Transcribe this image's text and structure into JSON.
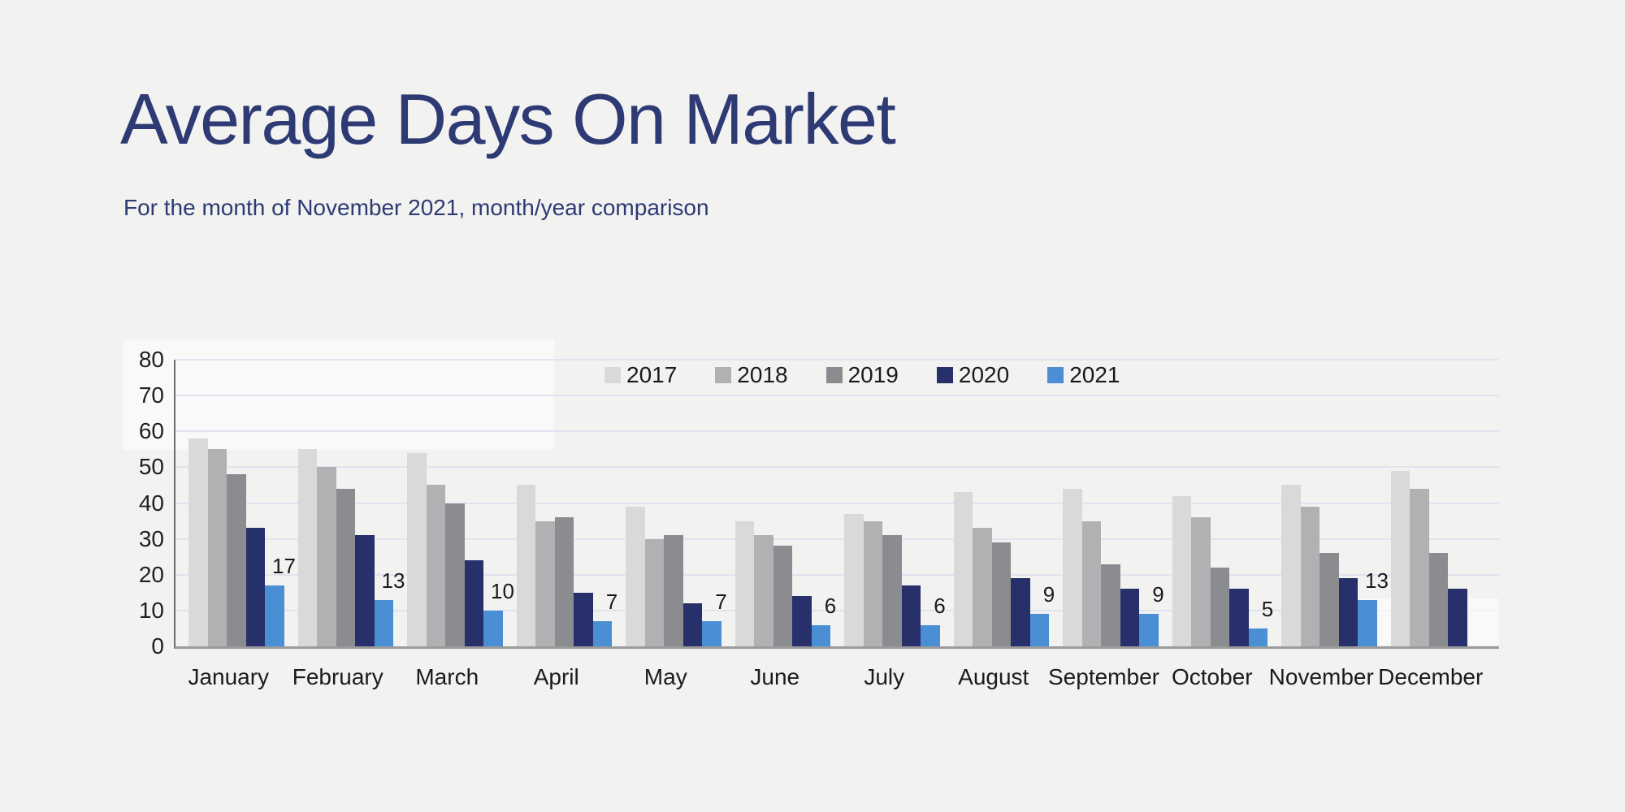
{
  "header": {
    "title": "Average Days On Market",
    "subtitle": "For the month of November 2021, month/year comparison",
    "title_color": "#2d3a74"
  },
  "chart_data": {
    "type": "bar",
    "title": "Average Days On Market",
    "subtitle": "For the month of November 2021, month/year comparison",
    "categories": [
      "January",
      "February",
      "March",
      "April",
      "May",
      "June",
      "July",
      "August",
      "September",
      "October",
      "November",
      "December"
    ],
    "series": [
      {
        "name": "2017",
        "color": "#d9d9d9",
        "values": [
          58,
          55,
          54,
          45,
          39,
          35,
          37,
          43,
          44,
          42,
          45,
          49
        ]
      },
      {
        "name": "2018",
        "color": "#b1b1b3",
        "values": [
          55,
          50,
          45,
          35,
          30,
          31,
          35,
          33,
          35,
          36,
          39,
          44
        ]
      },
      {
        "name": "2019",
        "color": "#8b8c8f",
        "values": [
          48,
          44,
          40,
          36,
          31,
          28,
          31,
          29,
          23,
          22,
          26,
          26
        ]
      },
      {
        "name": "2020",
        "color": "#27306a",
        "values": [
          33,
          31,
          24,
          15,
          12,
          14,
          17,
          19,
          16,
          16,
          19,
          16
        ]
      },
      {
        "name": "2021",
        "color": "#4a8fd4",
        "values": [
          17,
          13,
          10,
          7,
          7,
          6,
          6,
          9,
          9,
          5,
          13,
          null
        ],
        "show_data_labels": true
      }
    ],
    "ylim": [
      0,
      80
    ],
    "yticks": [
      0,
      10,
      20,
      30,
      40,
      50,
      60,
      70,
      80
    ],
    "xlabel": "",
    "ylabel": "",
    "grid": "horizontal",
    "legend_position": "top-center"
  }
}
